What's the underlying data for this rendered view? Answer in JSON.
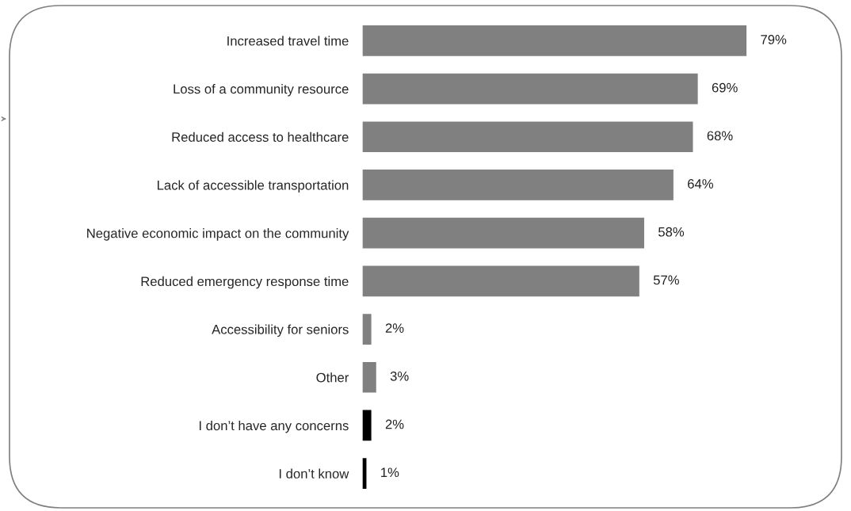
{
  "chart_data": {
    "type": "bar",
    "orientation": "horizontal",
    "categories": [
      "Increased travel time",
      "Loss of a community resource",
      "Reduced access to healthcare",
      "Lack of accessible transportation",
      "Negative economic impact on the community",
      "Reduced emergency response time",
      "Accessibility for seniors",
      "Other",
      "I don’t have any concerns",
      "I don’t know"
    ],
    "values": [
      79,
      69,
      68,
      64,
      58,
      57,
      2,
      3,
      2,
      1
    ],
    "colors": [
      "#808080",
      "#808080",
      "#808080",
      "#808080",
      "#808080",
      "#808080",
      "#808080",
      "#808080",
      "#000000",
      "#000000"
    ],
    "value_labels": [
      "79%",
      "69%",
      "68%",
      "64%",
      "58%",
      "57%",
      "2%",
      "3%",
      "2%",
      "1%"
    ],
    "grid": false,
    "legend": false
  }
}
